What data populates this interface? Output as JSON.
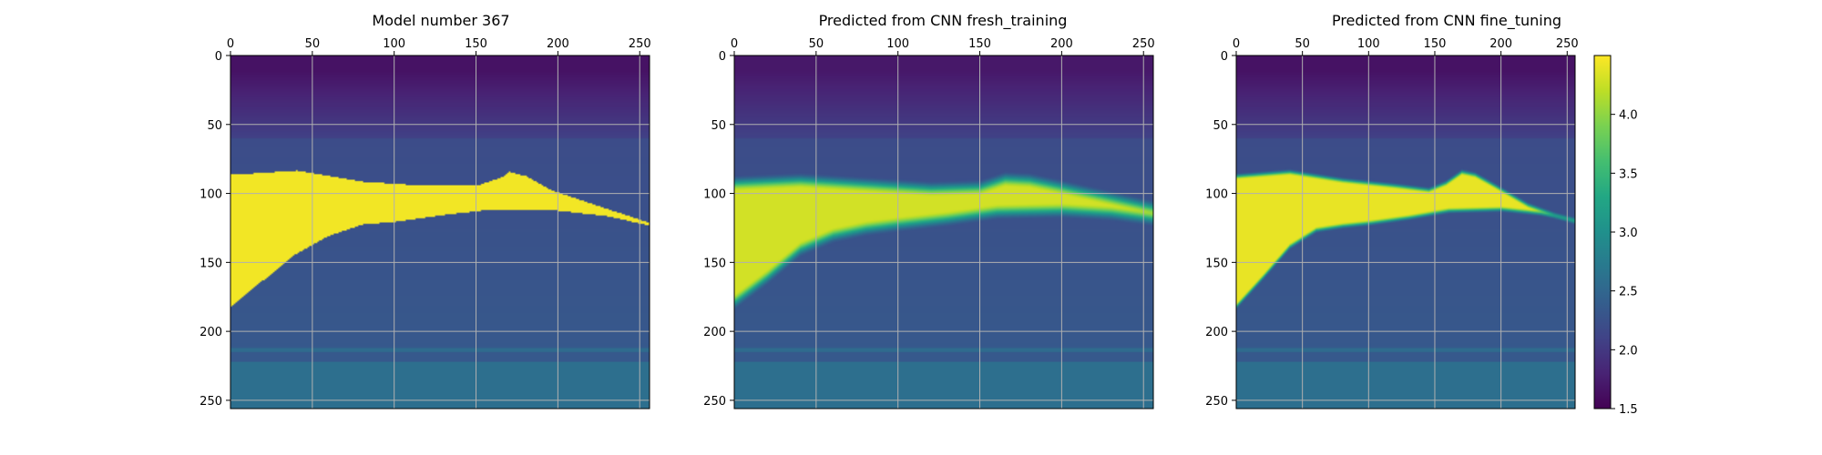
{
  "chart_data": [
    {
      "type": "heatmap",
      "title": "Model number 367",
      "x_ticks": [
        0,
        50,
        100,
        150,
        200,
        250
      ],
      "y_ticks": [
        0,
        50,
        100,
        150,
        200,
        250
      ],
      "xlim": [
        0,
        256
      ],
      "ylim": [
        256,
        0
      ],
      "grid": true,
      "xaxis_position": "top",
      "field": {
        "background_top": 1.65,
        "background_mid": 2.2,
        "background_bottom": 2.6,
        "salt_value": 4.45,
        "salt_top_boundary": [
          [
            0,
            86
          ],
          [
            40,
            83
          ],
          [
            80,
            91
          ],
          [
            120,
            94
          ],
          [
            150,
            94
          ],
          [
            165,
            88
          ],
          [
            170,
            84
          ],
          [
            180,
            87
          ],
          [
            195,
            97
          ],
          [
            220,
            107
          ],
          [
            256,
            121
          ]
        ],
        "salt_bottom_boundary": [
          [
            0,
            181
          ],
          [
            20,
            162
          ],
          [
            40,
            143
          ],
          [
            60,
            130
          ],
          [
            80,
            122
          ],
          [
            100,
            120
          ],
          [
            130,
            115
          ],
          [
            160,
            111
          ],
          [
            200,
            112
          ],
          [
            230,
            116
          ],
          [
            256,
            123
          ]
        ],
        "smoothness": "sharp"
      }
    },
    {
      "type": "heatmap",
      "title": "Predicted from CNN fresh_training",
      "x_ticks": [
        0,
        50,
        100,
        150,
        200,
        250
      ],
      "y_ticks": [
        0,
        50,
        100,
        150,
        200,
        250
      ],
      "xlim": [
        0,
        256
      ],
      "ylim": [
        256,
        0
      ],
      "grid": true,
      "xaxis_position": "top",
      "field": {
        "background_top": 1.7,
        "background_mid": 2.2,
        "background_bottom": 2.6,
        "salt_value": 4.3,
        "salt_top_boundary": [
          [
            0,
            92
          ],
          [
            40,
            90
          ],
          [
            80,
            93
          ],
          [
            120,
            96
          ],
          [
            150,
            95
          ],
          [
            165,
            89
          ],
          [
            180,
            90
          ],
          [
            200,
            95
          ],
          [
            230,
            103
          ],
          [
            256,
            110
          ]
        ],
        "salt_bottom_boundary": [
          [
            0,
            178
          ],
          [
            20,
            160
          ],
          [
            40,
            140
          ],
          [
            60,
            130
          ],
          [
            80,
            125
          ],
          [
            100,
            122
          ],
          [
            130,
            118
          ],
          [
            160,
            113
          ],
          [
            200,
            112
          ],
          [
            230,
            114
          ],
          [
            256,
            118
          ]
        ],
        "smoothness": "blurred"
      }
    },
    {
      "type": "heatmap",
      "title": "Predicted from CNN fine_tuning",
      "x_ticks": [
        0,
        50,
        100,
        150,
        200,
        250
      ],
      "y_ticks": [
        0,
        50,
        100,
        150,
        200,
        250
      ],
      "xlim": [
        0,
        256
      ],
      "ylim": [
        256,
        0
      ],
      "grid": true,
      "xaxis_position": "top",
      "field": {
        "background_top": 1.65,
        "background_mid": 2.2,
        "background_bottom": 2.6,
        "salt_value": 4.4,
        "salt_top_boundary": [
          [
            0,
            87
          ],
          [
            40,
            84
          ],
          [
            80,
            90
          ],
          [
            120,
            94
          ],
          [
            145,
            97
          ],
          [
            158,
            92
          ],
          [
            170,
            84
          ],
          [
            180,
            86
          ],
          [
            195,
            94
          ],
          [
            220,
            108
          ],
          [
            240,
            115
          ],
          [
            256,
            119
          ]
        ],
        "salt_bottom_boundary": [
          [
            0,
            181
          ],
          [
            20,
            160
          ],
          [
            40,
            138
          ],
          [
            60,
            126
          ],
          [
            80,
            123
          ],
          [
            100,
            121
          ],
          [
            130,
            117
          ],
          [
            160,
            112
          ],
          [
            200,
            111
          ],
          [
            230,
            114
          ],
          [
            240,
            116
          ],
          [
            256,
            120
          ]
        ],
        "smoothness": "slightly-blurred"
      }
    }
  ],
  "colorbar": {
    "colormap": "viridis",
    "vmin": 1.5,
    "vmax": 4.5,
    "ticks": [
      "1.5",
      "2.0",
      "2.5",
      "3.0",
      "3.5",
      "4.0"
    ],
    "tick_values": [
      1.5,
      2.0,
      2.5,
      3.0,
      3.5,
      4.0
    ]
  }
}
